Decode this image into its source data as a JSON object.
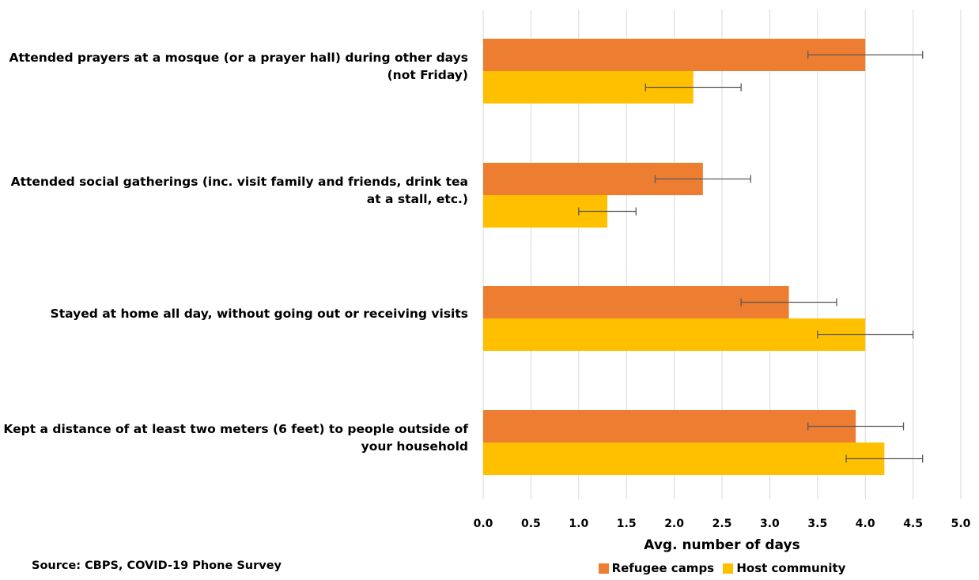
{
  "colors": {
    "refugee": "#ED7D31",
    "host": "#FFC000",
    "grid": "#D9D9D9",
    "errorbar": "#595959"
  },
  "chart_data": {
    "type": "bar",
    "orientation": "horizontal",
    "categories": [
      "Attended prayers at a mosque (or a prayer hall) during other days (not Friday)",
      "Attended social gatherings (inc. visit family and friends, drink tea at a stall, etc.)",
      "Stayed at home all day, without going out or receiving visits",
      "Kept a distance of at least two meters (6 feet) to people outside of your household"
    ],
    "series": [
      {
        "name": "Refugee camps",
        "color": "#ED7D31",
        "values": [
          4.0,
          2.3,
          3.2,
          3.9
        ],
        "error_low": [
          3.4,
          1.8,
          2.7,
          3.4
        ],
        "error_high": [
          4.6,
          2.8,
          3.7,
          4.4
        ]
      },
      {
        "name": "Host community",
        "color": "#FFC000",
        "values": [
          2.2,
          1.3,
          4.0,
          4.2
        ],
        "error_low": [
          1.7,
          1.0,
          3.5,
          3.8
        ],
        "error_high": [
          2.7,
          1.6,
          4.5,
          4.6
        ]
      }
    ],
    "xlabel": "Avg. number of days",
    "xlim": [
      0,
      5
    ],
    "xticks": [
      "0.0",
      "0.5",
      "1.0",
      "1.5",
      "2.0",
      "2.5",
      "3.0",
      "3.5",
      "4.0",
      "4.5",
      "5.0"
    ],
    "grid": true,
    "legend_position": "bottom"
  },
  "source_note": "Source: CBPS, COVID-19 Phone Survey"
}
